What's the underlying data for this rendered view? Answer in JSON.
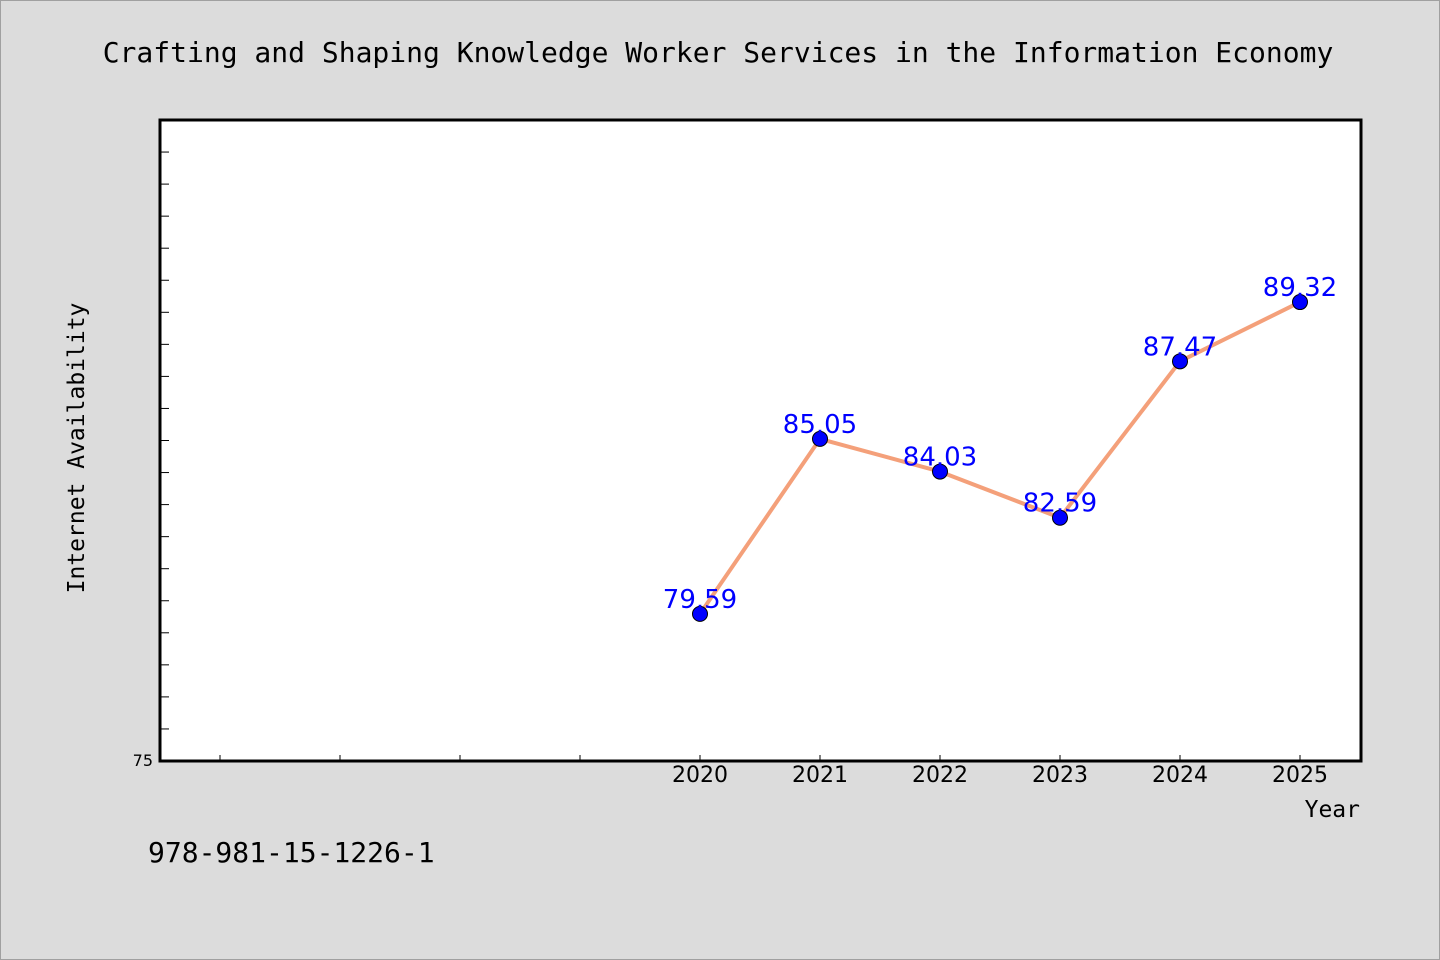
{
  "footer": {
    "isbn": "978-981-15-1226-1"
  },
  "chart_data": {
    "type": "line",
    "title": "Crafting and Shaping Knowledge Worker Services in the Information Economy",
    "xlabel": "Year",
    "ylabel": "Internet Availability",
    "x": [
      "2020",
      "2021",
      "2022",
      "2023",
      "2024",
      "2025"
    ],
    "series": [
      {
        "values": [
          79.59,
          85.05,
          84.03,
          82.59,
          87.47,
          89.32
        ]
      }
    ],
    "data_labels": [
      "79.59",
      "85.05",
      "84.03",
      "82.59",
      "87.47",
      "89.32"
    ],
    "ylim": [
      75,
      95
    ],
    "y_tick_labels": [
      "75"
    ],
    "grid": false,
    "colors": {
      "line": "#f4a07a",
      "marker": "#0000ff",
      "label": "#0000ff",
      "background": "#dcdcdc",
      "plot_background": "#ffffff"
    }
  }
}
